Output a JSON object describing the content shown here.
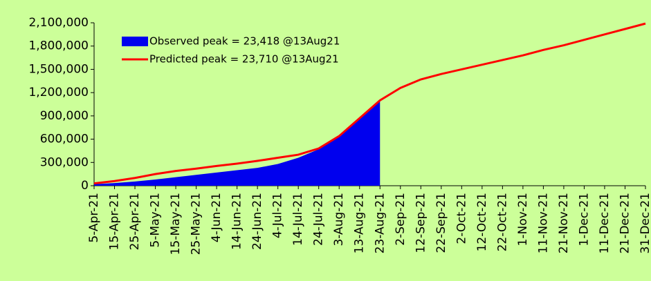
{
  "chart_data": {
    "type": "area_line",
    "categories": [
      "5-Apr-21",
      "15-Apr-21",
      "25-Apr-21",
      "5-May-21",
      "15-May-21",
      "25-May-21",
      "4-Jun-21",
      "14-Jun-21",
      "24-Jun-21",
      "4-Jul-21",
      "14-Jul-21",
      "24-Jul-21",
      "3-Aug-21",
      "13-Aug-21",
      "23-Aug-21",
      "2-Sep-21",
      "12-Sep-21",
      "22-Sep-21",
      "2-Oct-21",
      "12-Oct-21",
      "22-Oct-21",
      "1-Nov-21",
      "11-Nov-21",
      "21-Nov-21",
      "1-Dec-21",
      "11-Dec-21",
      "21-Dec-21",
      "31-Dec-21"
    ],
    "series": [
      {
        "name": "Observed peak = 23,418 @13Aug21",
        "color": "#0000ee",
        "kind": "area",
        "values": [
          20000,
          35000,
          55000,
          80000,
          110000,
          140000,
          170000,
          200000,
          230000,
          280000,
          360000,
          470000,
          630000,
          860000,
          1090000,
          null,
          null,
          null,
          null,
          null,
          null,
          null,
          null,
          null,
          null,
          null,
          null,
          null
        ]
      },
      {
        "name": "Predicted peak = 23,710 @13Aug21",
        "color": "#ff0000",
        "kind": "line",
        "values": [
          30000,
          60000,
          100000,
          150000,
          190000,
          220000,
          255000,
          285000,
          320000,
          360000,
          400000,
          480000,
          640000,
          870000,
          1100000,
          1260000,
          1370000,
          1440000,
          1500000,
          1560000,
          1620000,
          1680000,
          1750000,
          1810000,
          1880000,
          1950000,
          2020000,
          2090000
        ]
      }
    ],
    "ylim": [
      0,
      2100000
    ],
    "yticks": [
      0,
      {
        "value": 300000,
        "label": "300,000"
      },
      {
        "value": 600000,
        "label": "600,000"
      },
      {
        "value": 900000,
        "label": "900,000"
      },
      {
        "value": 1200000,
        "label": "1,200,000"
      },
      {
        "value": 1500000,
        "label": "1,500,000"
      },
      {
        "value": 1800000,
        "label": "1,800,000"
      },
      {
        "value": 2100000,
        "label": "2,100,000"
      }
    ],
    "grid": false
  }
}
